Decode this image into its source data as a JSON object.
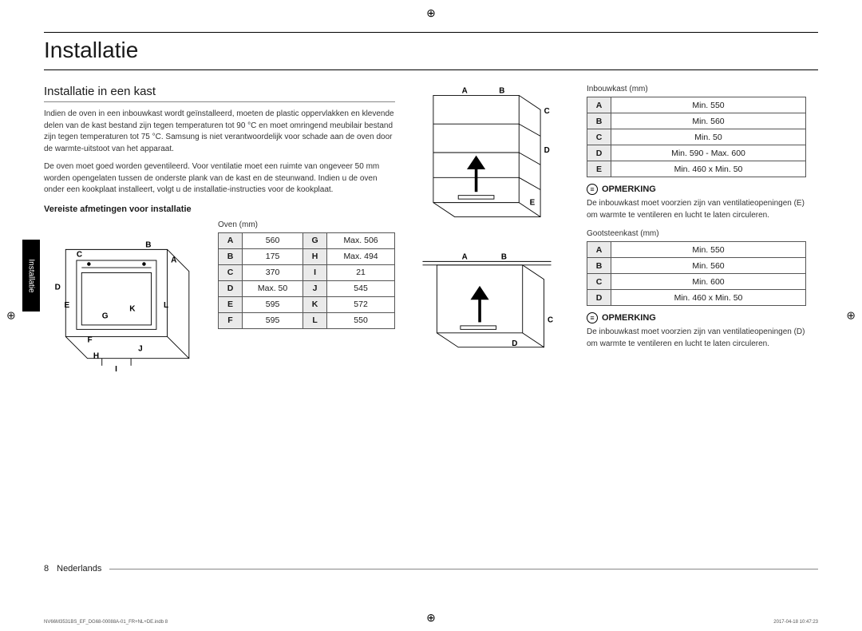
{
  "heading": "Installatie",
  "subheading": "Installatie in een kast",
  "para1": "Indien de oven in een inbouwkast wordt geïnstalleerd, moeten de plastic oppervlakken en klevende delen van de kast bestand zijn tegen temperaturen tot 90 °C en moet omringend meubilair bestand zijn tegen temperaturen tot 75 °C. Samsung is niet verantwoordelijk voor schade aan de oven door de warmte-uitstoot van het apparaat.",
  "para2": "De oven moet goed worden geventileerd. Voor ventilatie moet een ruimte van ongeveer 50 mm worden opengelaten tussen de onderste plank van de kast en de steunwand. Indien u de oven onder een kookplaat installeert, volgt u de installatie-instructies voor de kookplaat.",
  "req_heading": "Vereiste afmetingen voor installatie",
  "oven_caption": "Oven (mm)",
  "oven_rows": [
    [
      "A",
      "560",
      "G",
      "Max. 506"
    ],
    [
      "B",
      "175",
      "H",
      "Max. 494"
    ],
    [
      "C",
      "370",
      "I",
      "21"
    ],
    [
      "D",
      "Max. 50",
      "J",
      "545"
    ],
    [
      "E",
      "595",
      "K",
      "572"
    ],
    [
      "F",
      "595",
      "L",
      "550"
    ]
  ],
  "inbouw_caption": "Inbouwkast (mm)",
  "inbouw_rows": [
    [
      "A",
      "Min. 550"
    ],
    [
      "B",
      "Min. 560"
    ],
    [
      "C",
      "Min. 50"
    ],
    [
      "D",
      "Min. 590 - Max. 600"
    ],
    [
      "E",
      "Min. 460 x Min. 50"
    ]
  ],
  "goot_caption": "Gootsteenkast (mm)",
  "goot_rows": [
    [
      "A",
      "Min. 550"
    ],
    [
      "B",
      "Min. 560"
    ],
    [
      "C",
      "Min. 600"
    ],
    [
      "D",
      "Min. 460 x Min. 50"
    ]
  ],
  "note_label": "OPMERKING",
  "note1": "De inbouwkast moet voorzien zijn van ventilatieopeningen (E) om warmte te ventileren en lucht te laten circuleren.",
  "note2": "De inbouwkast moet voorzien zijn van ventilatieopeningen (D) om warmte te ventileren en lucht te laten circuleren.",
  "sidebar": "Installatie",
  "page_num": "8",
  "page_lang": "Nederlands",
  "footer_left": "NV66M3531BS_EF_DG68-00088A-01_FR+NL+DE.indb   8",
  "footer_right": "2017-04-18   10:47:23",
  "labels": {
    "A": "A",
    "B": "B",
    "C": "C",
    "D": "D",
    "E": "E",
    "F": "F",
    "G": "G",
    "H": "H",
    "I": "I",
    "J": "J",
    "K": "K",
    "L": "L"
  }
}
